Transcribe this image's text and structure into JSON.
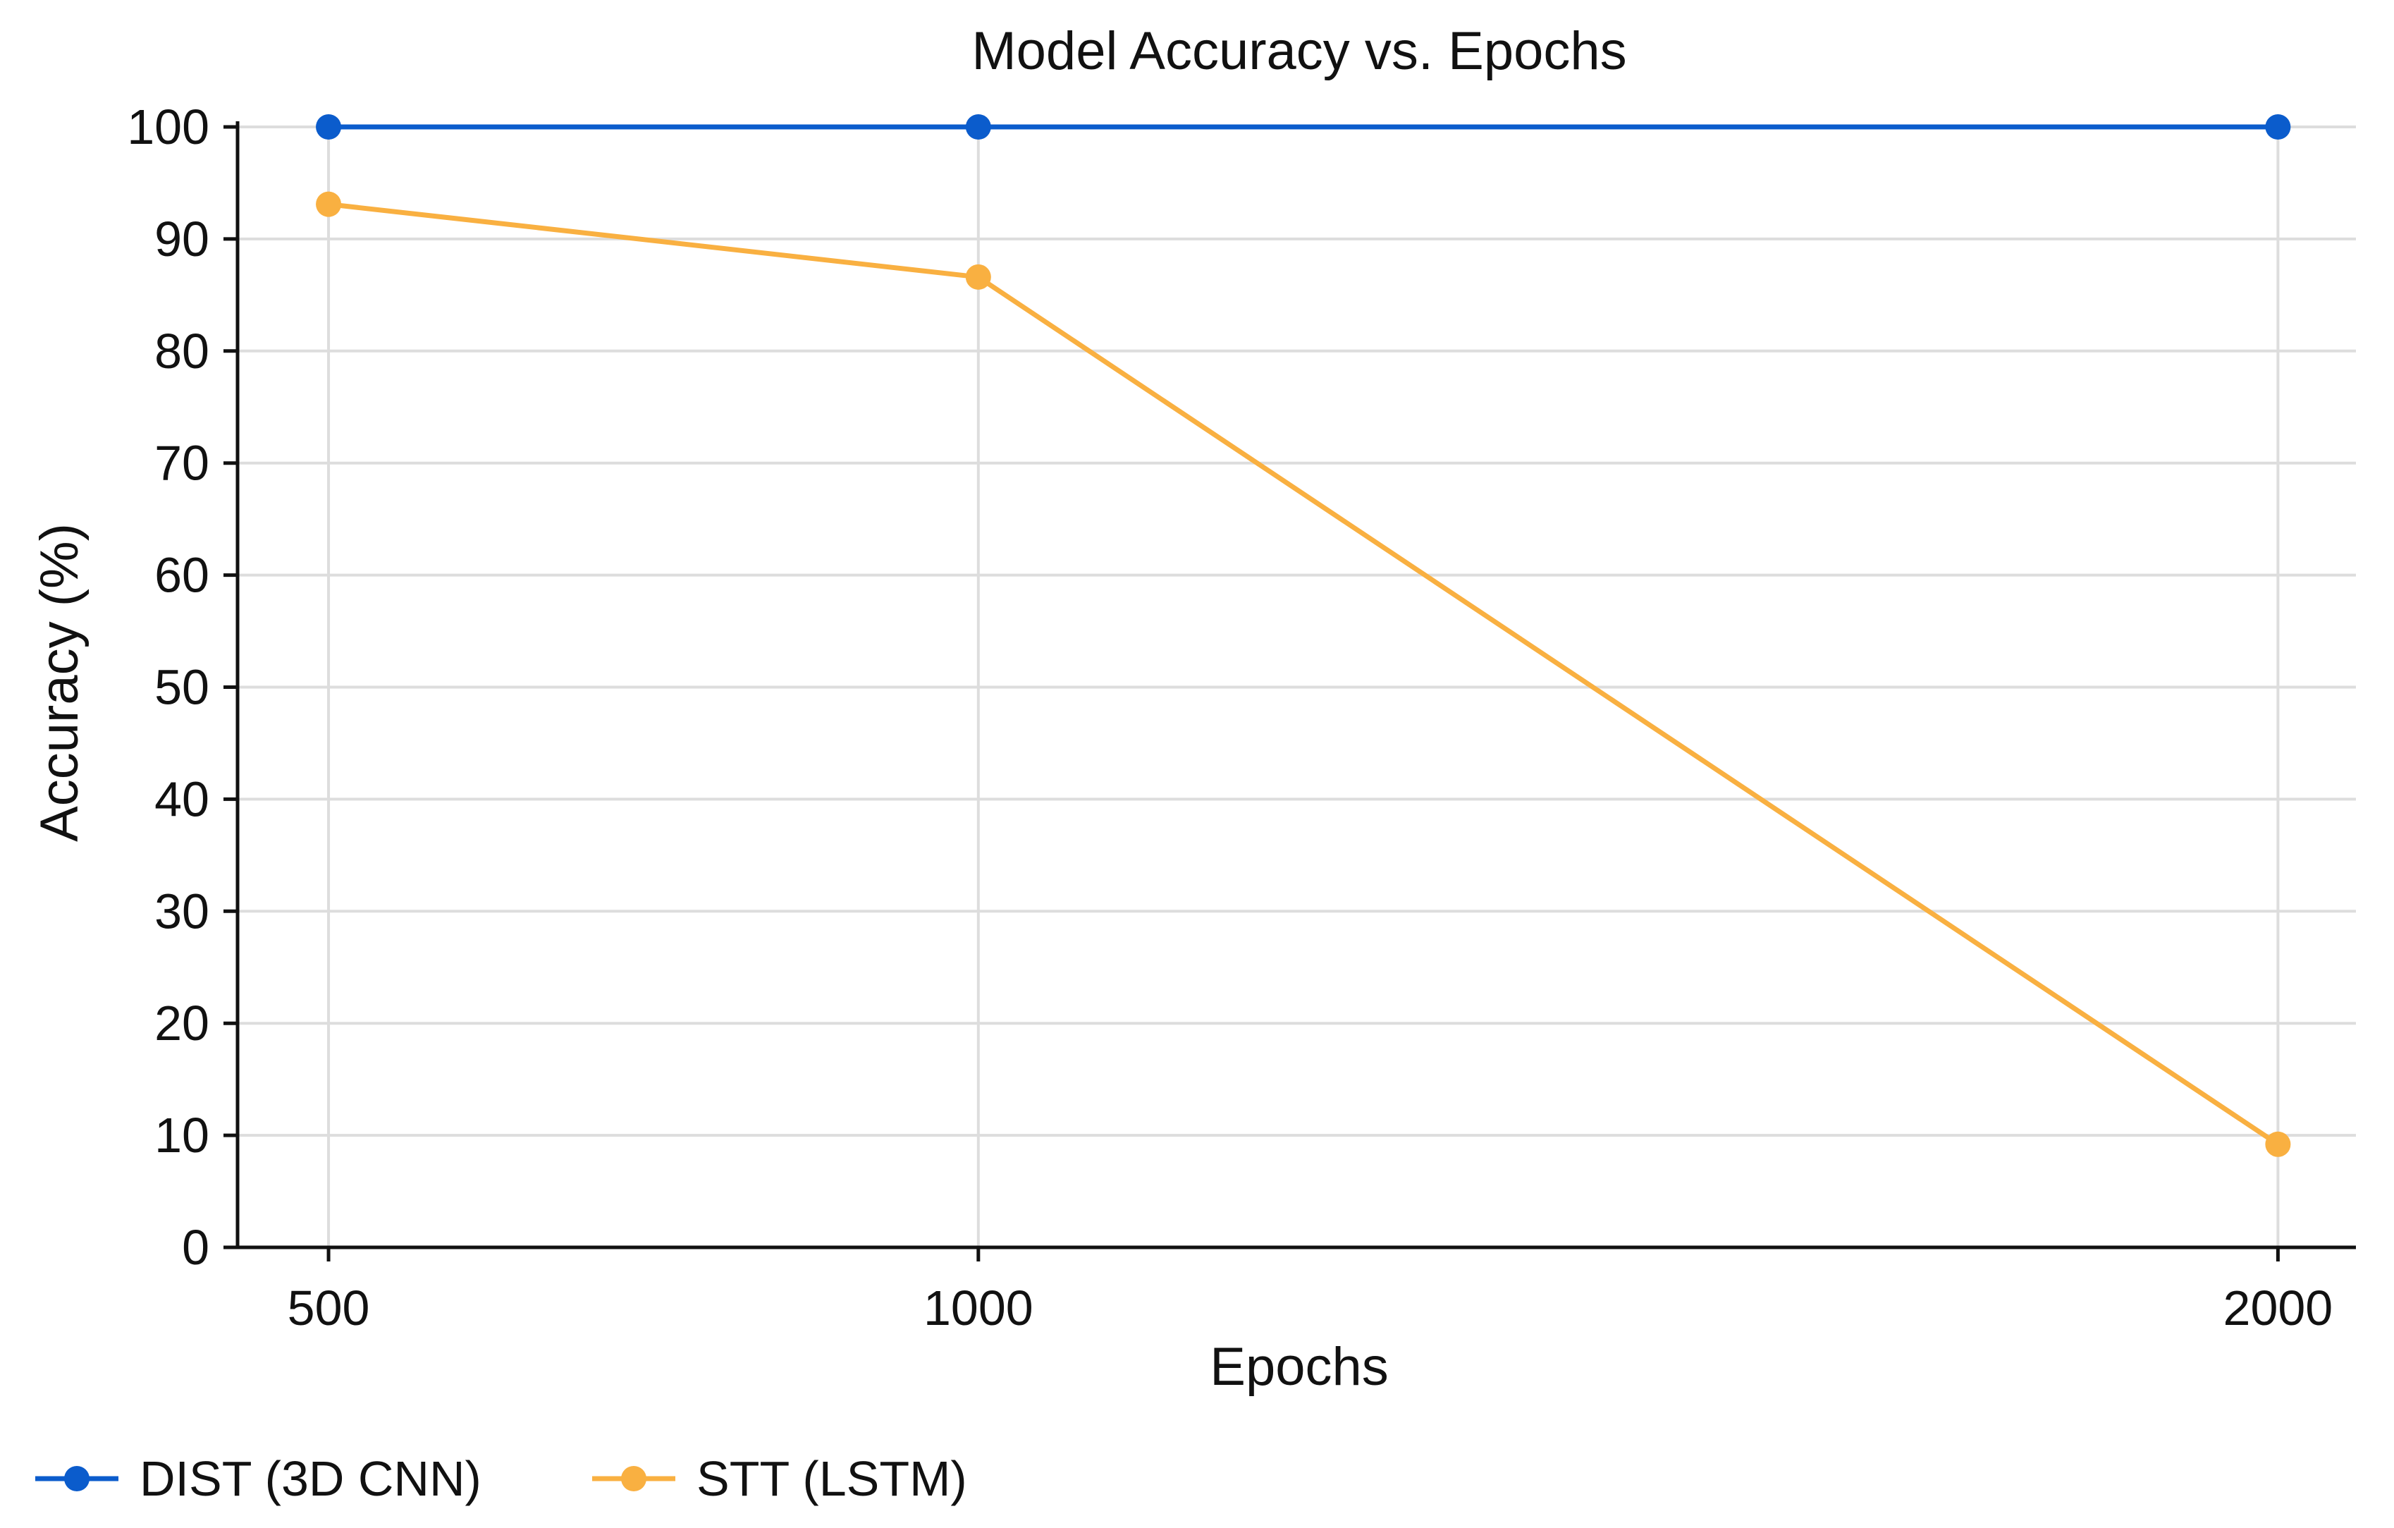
{
  "chart_data": {
    "type": "line",
    "title": "Model Accuracy vs. Epochs",
    "xlabel": "Epochs",
    "ylabel": "Accuracy (%)",
    "x": [
      500,
      1000,
      2000
    ],
    "x_tick_labels": [
      "500",
      "1000",
      "2000"
    ],
    "xlim": [
      430,
      2060
    ],
    "ylim": [
      0,
      100
    ],
    "y_ticks": [
      0,
      10,
      20,
      30,
      40,
      50,
      60,
      70,
      80,
      90,
      100
    ],
    "y_tick_labels": [
      "0",
      "10",
      "20",
      "30",
      "40",
      "50",
      "60",
      "70",
      "80",
      "90",
      "100"
    ],
    "grid": true,
    "legend_position": "bottom-left",
    "series": [
      {
        "name": "DIST (3D CNN)",
        "color": "#0b5ccc",
        "values": [
          100,
          100,
          100
        ]
      },
      {
        "name": "STT (LSTM)",
        "color": "#f9b041",
        "values": [
          93.1,
          86.6,
          9.2
        ]
      }
    ]
  }
}
